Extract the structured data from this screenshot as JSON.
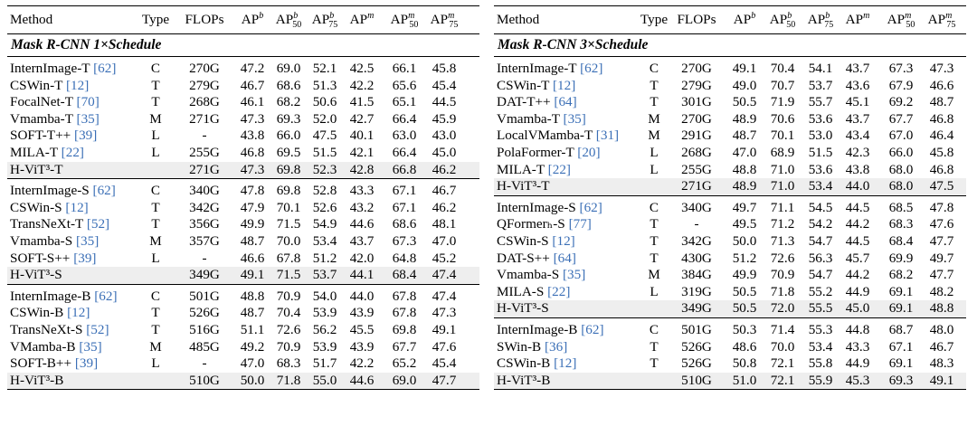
{
  "columns": {
    "method": "Method",
    "type": "Type",
    "flops": "FLOPs",
    "ap": "AP",
    "ap_sup_b": "b",
    "ap50": "AP",
    "ap50_sup": "b",
    "ap50_sub": "50",
    "ap75": "AP",
    "ap75_sup": "b",
    "ap75_sub": "75",
    "apm": "AP",
    "apm_sup": "m",
    "apm50": "AP",
    "apm50_sup": "m",
    "apm50_sub": "50",
    "apm75": "AP",
    "apm75_sup": "m",
    "apm75_sub": "75"
  },
  "left": {
    "section": "Mask R-CNN   1×Schedule",
    "groups": [
      [
        {
          "name": "InternImage-T",
          "cite": "[62]",
          "type": "C",
          "flops": "270G",
          "v": [
            "47.2",
            "69.0",
            "52.1",
            "42.5",
            "66.1",
            "45.8"
          ]
        },
        {
          "name": "CSWin-T",
          "cite": "[12]",
          "type": "T",
          "flops": "279G",
          "v": [
            "46.7",
            "68.6",
            "51.3",
            "42.2",
            "65.6",
            "45.4"
          ]
        },
        {
          "name": "FocalNet-T",
          "cite": "[70]",
          "type": "T",
          "flops": "268G",
          "v": [
            "46.1",
            "68.2",
            "50.6",
            "41.5",
            "65.1",
            "44.5"
          ]
        },
        {
          "name": "Vmamba-T",
          "cite": "[35]",
          "type": "M",
          "flops": "271G",
          "v": [
            "47.3",
            "69.3",
            "52.0",
            "42.7",
            "66.4",
            "45.9"
          ]
        },
        {
          "name": "SOFT-T++",
          "cite": "[39]",
          "type": "L",
          "flops": "-",
          "v": [
            "43.8",
            "66.0",
            "47.5",
            "40.1",
            "63.0",
            "43.0"
          ]
        },
        {
          "name": "MILA-T",
          "cite": "[22]",
          "type": "L",
          "flops": "255G",
          "v": [
            "46.8",
            "69.5",
            "51.5",
            "42.1",
            "66.4",
            "45.0"
          ]
        },
        {
          "name": "H-ViT³-T",
          "cite": "",
          "type": "",
          "flops": "271G",
          "v": [
            "47.3",
            "69.8",
            "52.3",
            "42.8",
            "66.8",
            "46.2"
          ],
          "ours": true
        }
      ],
      [
        {
          "name": "InternImage-S",
          "cite": "[62]",
          "type": "C",
          "flops": "340G",
          "v": [
            "47.8",
            "69.8",
            "52.8",
            "43.3",
            "67.1",
            "46.7"
          ]
        },
        {
          "name": "CSWin-S",
          "cite": "[12]",
          "type": "T",
          "flops": "342G",
          "v": [
            "47.9",
            "70.1",
            "52.6",
            "43.2",
            "67.1",
            "46.2"
          ]
        },
        {
          "name": "TransNeXt-T",
          "cite": "[52]",
          "type": "T",
          "flops": "356G",
          "v": [
            "49.9",
            "71.5",
            "54.9",
            "44.6",
            "68.6",
            "48.1"
          ]
        },
        {
          "name": "Vmamba-S",
          "cite": "[35]",
          "type": "M",
          "flops": "357G",
          "v": [
            "48.7",
            "70.0",
            "53.4",
            "43.7",
            "67.3",
            "47.0"
          ]
        },
        {
          "name": "SOFT-S++",
          "cite": "[39]",
          "type": "L",
          "flops": "-",
          "v": [
            "46.6",
            "67.8",
            "51.2",
            "42.0",
            "64.8",
            "45.2"
          ]
        },
        {
          "name": "H-ViT³-S",
          "cite": "",
          "type": "",
          "flops": "349G",
          "v": [
            "49.1",
            "71.5",
            "53.7",
            "44.1",
            "68.4",
            "47.4"
          ],
          "ours": true
        }
      ],
      [
        {
          "name": "InternImage-B",
          "cite": "[62]",
          "type": "C",
          "flops": "501G",
          "v": [
            "48.8",
            "70.9",
            "54.0",
            "44.0",
            "67.8",
            "47.4"
          ]
        },
        {
          "name": "CSWin-B",
          "cite": "[12]",
          "type": "T",
          "flops": "526G",
          "v": [
            "48.7",
            "70.4",
            "53.9",
            "43.9",
            "67.8",
            "47.3"
          ]
        },
        {
          "name": "TransNeXt-S",
          "cite": "[52]",
          "type": "T",
          "flops": "516G",
          "v": [
            "51.1",
            "72.6",
            "56.2",
            "45.5",
            "69.8",
            "49.1"
          ]
        },
        {
          "name": "VMamba-B",
          "cite": "[35]",
          "type": "M",
          "flops": "485G",
          "v": [
            "49.2",
            "70.9",
            "53.9",
            "43.9",
            "67.7",
            "47.6"
          ]
        },
        {
          "name": "SOFT-B++",
          "cite": "[39]",
          "type": "L",
          "flops": "-",
          "v": [
            "47.0",
            "68.3",
            "51.7",
            "42.2",
            "65.2",
            "45.4"
          ]
        },
        {
          "name": "H-ViT³-B",
          "cite": "",
          "type": "",
          "flops": "510G",
          "v": [
            "50.0",
            "71.8",
            "55.0",
            "44.6",
            "69.0",
            "47.7"
          ],
          "ours": true
        }
      ]
    ]
  },
  "right": {
    "section": "Mask R-CNN   3×Schedule",
    "groups": [
      [
        {
          "name": "InternImage-T",
          "cite": "[62]",
          "type": "C",
          "flops": "270G",
          "v": [
            "49.1",
            "70.4",
            "54.1",
            "43.7",
            "67.3",
            "47.3"
          ]
        },
        {
          "name": "CSWin-T",
          "cite": "[12]",
          "type": "T",
          "flops": "279G",
          "v": [
            "49.0",
            "70.7",
            "53.7",
            "43.6",
            "67.9",
            "46.6"
          ]
        },
        {
          "name": "DAT-T++",
          "cite": "[64]",
          "type": "T",
          "flops": "301G",
          "v": [
            "50.5",
            "71.9",
            "55.7",
            "45.1",
            "69.2",
            "48.7"
          ]
        },
        {
          "name": "Vmamba-T",
          "cite": "[35]",
          "type": "M",
          "flops": "270G",
          "v": [
            "48.9",
            "70.6",
            "53.6",
            "43.7",
            "67.7",
            "46.8"
          ]
        },
        {
          "name": "LocalVMamba-T",
          "cite": "[31]",
          "type": "M",
          "flops": "291G",
          "v": [
            "48.7",
            "70.1",
            "53.0",
            "43.4",
            "67.0",
            "46.4"
          ]
        },
        {
          "name": "PolaFormer-T",
          "cite": "[20]",
          "type": "L",
          "flops": "268G",
          "v": [
            "47.0",
            "68.9",
            "51.5",
            "42.3",
            "66.0",
            "45.8"
          ]
        },
        {
          "name": "MILA-T",
          "cite": "[22]",
          "type": "L",
          "flops": "255G",
          "v": [
            "48.8",
            "71.0",
            "53.6",
            "43.8",
            "68.0",
            "46.8"
          ]
        },
        {
          "name": "H-ViT³-T",
          "cite": "",
          "type": "",
          "flops": "271G",
          "v": [
            "48.9",
            "71.0",
            "53.4",
            "44.0",
            "68.0",
            "47.5"
          ],
          "ours": true
        }
      ],
      [
        {
          "name": "InternImage-S",
          "cite": "[62]",
          "type": "C",
          "flops": "340G",
          "v": [
            "49.7",
            "71.1",
            "54.5",
            "44.5",
            "68.5",
            "47.8"
          ]
        },
        {
          "name": "QFormerₕ-S",
          "cite": "[77]",
          "type": "T",
          "flops": "-",
          "v": [
            "49.5",
            "71.2",
            "54.2",
            "44.2",
            "68.3",
            "47.6"
          ]
        },
        {
          "name": "CSWin-S",
          "cite": "[12]",
          "type": "T",
          "flops": "342G",
          "v": [
            "50.0",
            "71.3",
            "54.7",
            "44.5",
            "68.4",
            "47.7"
          ]
        },
        {
          "name": "DAT-S++",
          "cite": "[64]",
          "type": "T",
          "flops": "430G",
          "v": [
            "51.2",
            "72.6",
            "56.3",
            "45.7",
            "69.9",
            "49.7"
          ]
        },
        {
          "name": "Vmamba-S",
          "cite": "[35]",
          "type": "M",
          "flops": "384G",
          "v": [
            "49.9",
            "70.9",
            "54.7",
            "44.2",
            "68.2",
            "47.7"
          ]
        },
        {
          "name": "MILA-S",
          "cite": "[22]",
          "type": "L",
          "flops": "319G",
          "v": [
            "50.5",
            "71.8",
            "55.2",
            "44.9",
            "69.1",
            "48.2"
          ]
        },
        {
          "name": "H-ViT³-S",
          "cite": "",
          "type": "",
          "flops": "349G",
          "v": [
            "50.5",
            "72.0",
            "55.5",
            "45.0",
            "69.1",
            "48.8"
          ],
          "ours": true
        }
      ],
      [
        {
          "name": "InternImage-B",
          "cite": "[62]",
          "type": "C",
          "flops": "501G",
          "v": [
            "50.3",
            "71.4",
            "55.3",
            "44.8",
            "68.7",
            "48.0"
          ]
        },
        {
          "name": "SWin-B",
          "cite": "[36]",
          "type": "T",
          "flops": "526G",
          "v": [
            "48.6",
            "70.0",
            "53.4",
            "43.3",
            "67.1",
            "46.7"
          ]
        },
        {
          "name": "CSWin-B",
          "cite": "[12]",
          "type": "T",
          "flops": "526G",
          "v": [
            "50.8",
            "72.1",
            "55.8",
            "44.9",
            "69.1",
            "48.3"
          ]
        },
        {
          "name": "H-ViT³-B",
          "cite": "",
          "type": "",
          "flops": "510G",
          "v": [
            "51.0",
            "72.1",
            "55.9",
            "45.3",
            "69.3",
            "49.1"
          ],
          "ours": true
        }
      ]
    ]
  }
}
